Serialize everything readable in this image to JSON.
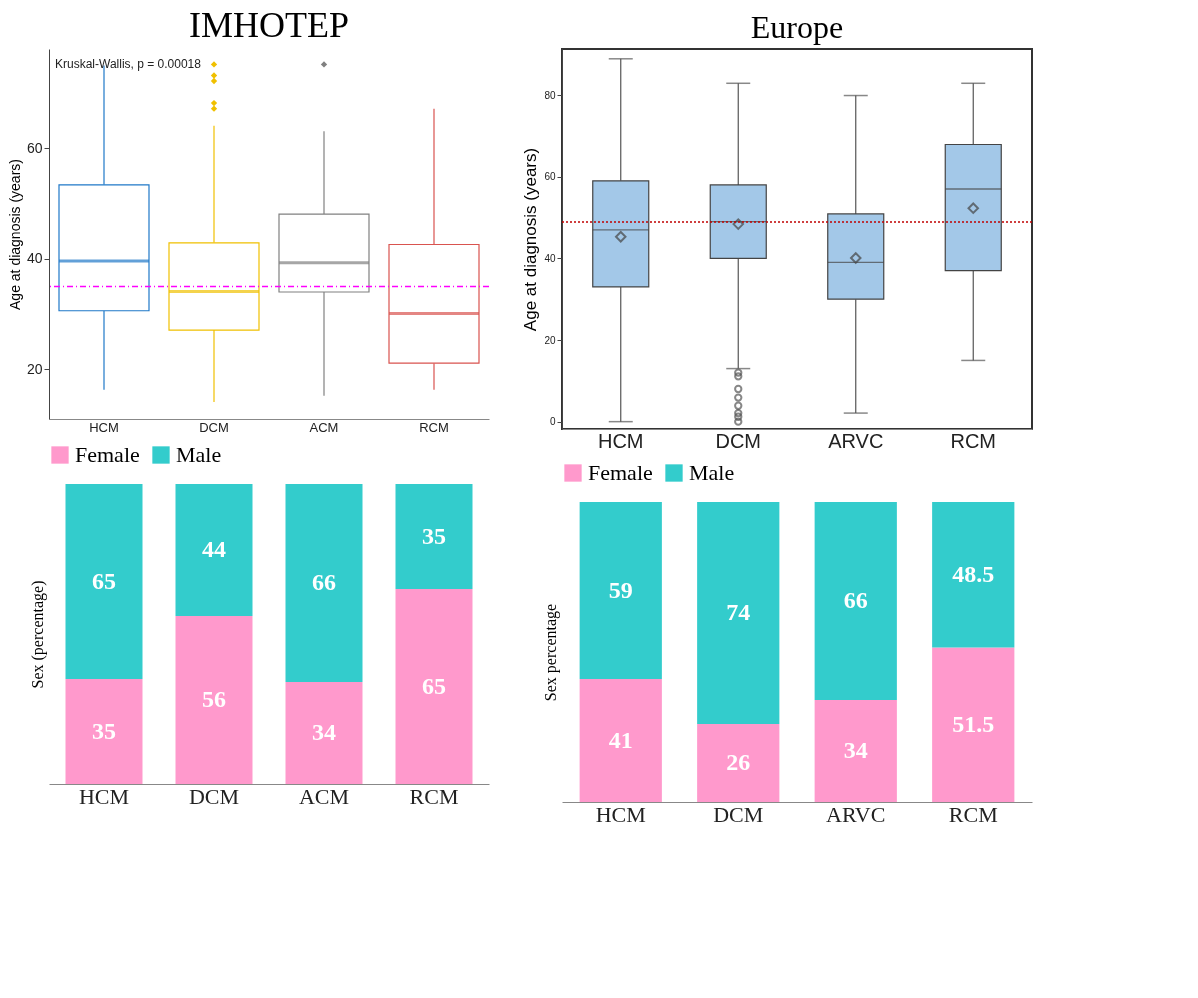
{
  "chart_data": [
    {
      "type": "box",
      "title": "IMHOTEP",
      "ylabel": "Age at diagnosis (years)",
      "categories": [
        "HCM",
        "DCM",
        "ACM",
        "RCM"
      ],
      "colors": [
        "#1f78c8",
        "#f0c000",
        "#808080",
        "#d9534f"
      ],
      "boxes": [
        {
          "low": 16.3,
          "q1": 30.6,
          "median": 39.6,
          "q3": 53.4,
          "high": 75
        },
        {
          "low": 14.1,
          "q1": 27.1,
          "median": 34.1,
          "q3": 42.9,
          "high": 64.1,
          "outliers": [
            75.2,
            73.2,
            72.2,
            68.2,
            67.2
          ]
        },
        {
          "low": 15.2,
          "q1": 34.0,
          "median": 39.3,
          "q3": 48.1,
          "high": 63.1,
          "outliers": [
            75.2
          ]
        },
        {
          "low": 16.3,
          "q1": 21.1,
          "median": 30.1,
          "q3": 42.6,
          "high": 67.2
        }
      ],
      "ylim": [
        11,
        78
      ],
      "yticks": [
        20,
        40,
        60
      ],
      "ref_lines": [
        {
          "axis": "y",
          "value": 35,
          "color": "#ff00ff",
          "line_style": "dashed"
        }
      ],
      "annotations": [
        "Kruskal-Wallis, p = 0.00018"
      ],
      "grid": false
    },
    {
      "type": "box",
      "title": "Europe",
      "ylabel": "Age at diagnosis (years)",
      "categories": [
        "HCM",
        "DCM",
        "ARVC",
        "RCM"
      ],
      "colors": [
        "#a3c8e8",
        "#a3c8e8",
        "#a3c8e8",
        "#a3c8e8"
      ],
      "boxes": [
        {
          "low": 0,
          "q1": 33.0,
          "median": 47.0,
          "q3": 59.0,
          "high": 88.9,
          "mean": 45.3
        },
        {
          "low": 13.0,
          "q1": 40.0,
          "median": 49.0,
          "q3": 58.0,
          "high": 82.9,
          "mean": 48.4,
          "outliers": [
            12,
            11.1,
            8,
            5.9,
            3.9,
            2.1,
            1.2,
            0
          ]
        },
        {
          "low": 2.1,
          "q1": 30.0,
          "median": 39.0,
          "q3": 50.9,
          "high": 79.9,
          "mean": 40.1
        },
        {
          "low": 15.0,
          "q1": 37.0,
          "median": 57.0,
          "q3": 67.9,
          "high": 82.9,
          "mean": 52.3
        }
      ],
      "ylim": [
        -1.8,
        91.3
      ],
      "yticks": [
        0,
        20,
        40,
        60,
        80
      ],
      "ref_lines": [
        {
          "axis": "y",
          "value": 48.9,
          "color": "#c00000",
          "line_style": "dotted"
        }
      ],
      "grid": false
    },
    {
      "type": "bar",
      "stacked": true,
      "ylabel": "Sex (percentage)",
      "categories": [
        "HCM",
        "DCM",
        "ACM",
        "RCM"
      ],
      "series": [
        {
          "name": "Female",
          "color": "#ff99cc",
          "values": [
            35,
            56,
            34,
            65
          ]
        },
        {
          "name": "Male",
          "color": "#33cccc",
          "values": [
            65,
            44,
            66,
            35
          ]
        }
      ],
      "data_labels": true,
      "legend": "top",
      "tick_labels": "x",
      "grid": false
    },
    {
      "type": "bar",
      "stacked": true,
      "ylabel": "Sex percentage",
      "categories": [
        "HCM",
        "DCM",
        "ARVC",
        "RCM"
      ],
      "series": [
        {
          "name": "Female",
          "color": "#ff99cc",
          "values": [
            41,
            26,
            34,
            51.5
          ]
        },
        {
          "name": "Male",
          "color": "#33cccc",
          "values": [
            59,
            74,
            66,
            48.5
          ]
        }
      ],
      "data_labels": true,
      "legend": "top",
      "tick_labels": "x",
      "grid": false
    }
  ]
}
